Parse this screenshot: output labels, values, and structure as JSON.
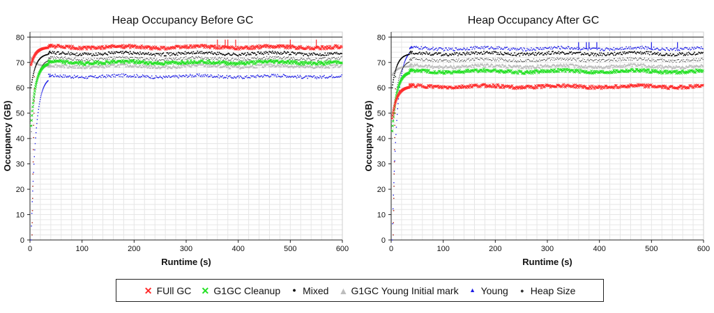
{
  "chart_data": [
    {
      "type": "scatter",
      "title": "Heap Occupancy Before GC",
      "xlabel": "Runtime (s)",
      "ylabel": "Occupancy (GB)",
      "xlim": [
        0,
        600
      ],
      "ylim": [
        0,
        82
      ],
      "xticks": [
        "0",
        "100",
        "200",
        "300",
        "400",
        "500",
        "600"
      ],
      "yticks": [
        "0",
        "10",
        "20",
        "30",
        "40",
        "50",
        "60",
        "70",
        "80"
      ],
      "grid": true,
      "reference_line": 80,
      "series": [
        {
          "name": "FUll GC",
          "level": 76,
          "start": 69,
          "spikes": [
            [
              360,
              79
            ],
            [
              375,
              79
            ],
            [
              380,
              79
            ],
            [
              395,
              79
            ],
            [
              500,
              79
            ],
            [
              550,
              79
            ]
          ]
        },
        {
          "name": "G1GC Cleanup",
          "level": 70,
          "start": 45
        },
        {
          "name": "Mixed",
          "level": 73.5,
          "start": 60
        },
        {
          "name": "G1GC Young Initial mark",
          "level": 68.5,
          "start": 72
        },
        {
          "name": "Young",
          "level": 64.5,
          "start": 0
        },
        {
          "name": "Heap Size",
          "level": 71.5,
          "start": 40
        }
      ]
    },
    {
      "type": "scatter",
      "title": "Heap Occupancy After GC",
      "xlabel": "Runtime (s)",
      "ylabel": "Occupancy (GB)",
      "xlim": [
        0,
        600
      ],
      "ylim": [
        0,
        82
      ],
      "xticks": [
        "0",
        "100",
        "200",
        "300",
        "400",
        "500",
        "600"
      ],
      "yticks": [
        "0",
        "10",
        "20",
        "30",
        "40",
        "50",
        "60",
        "70",
        "80"
      ],
      "grid": true,
      "reference_line": 80,
      "series": [
        {
          "name": "FUll GC",
          "level": 60.5,
          "start": 48
        },
        {
          "name": "G1GC Cleanup",
          "level": 66.5,
          "start": 43
        },
        {
          "name": "Mixed",
          "level": 73.5,
          "start": 60
        },
        {
          "name": "G1GC Young Initial mark",
          "level": 68.5,
          "start": 65
        },
        {
          "name": "Young",
          "level": 75.5,
          "start": 0,
          "spikes": [
            [
              360,
              78
            ],
            [
              375,
              78
            ],
            [
              380,
              78
            ],
            [
              395,
              78
            ],
            [
              500,
              78
            ],
            [
              550,
              78
            ]
          ]
        },
        {
          "name": "Heap Size",
          "level": 71,
          "start": 40
        }
      ]
    }
  ],
  "legend": {
    "items": [
      {
        "label": "FUll GC",
        "symbol": "✕",
        "color": "#ff2a2a"
      },
      {
        "label": "G1GC Cleanup",
        "symbol": "✕",
        "color": "#22e022"
      },
      {
        "label": "Mixed",
        "symbol": "●",
        "color": "#000000"
      },
      {
        "label": "G1GC Young Initial mark",
        "symbol": "▲",
        "color": "#bdbdbd"
      },
      {
        "label": "Young",
        "symbol": "▲",
        "color": "#1a1ae6"
      },
      {
        "label": "Heap Size",
        "symbol": "•",
        "color": "#333333"
      }
    ]
  }
}
